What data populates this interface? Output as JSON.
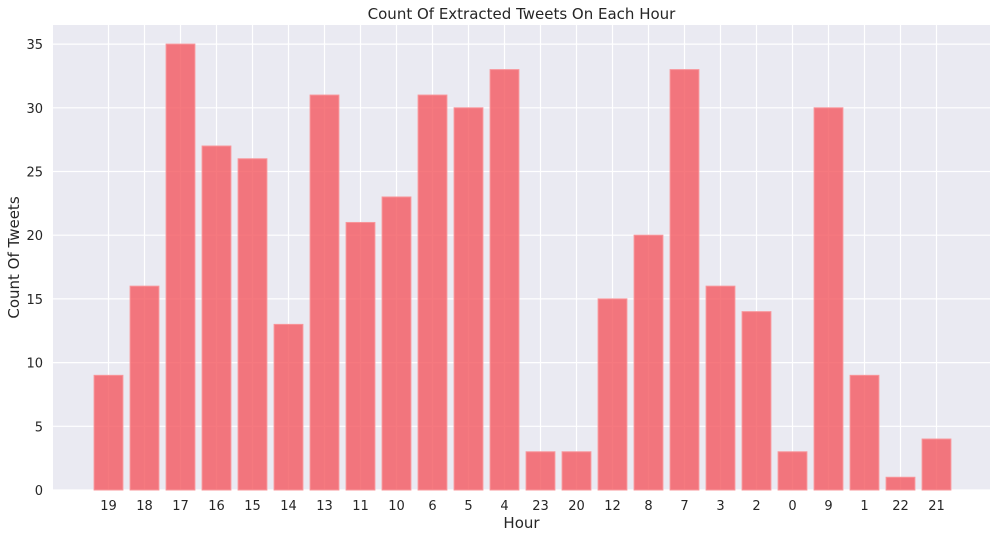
{
  "chart_data": {
    "type": "bar",
    "title": "Count Of Extracted Tweets On Each Hour",
    "xlabel": "Hour",
    "ylabel": "Count Of Tweets",
    "categories": [
      "19",
      "18",
      "17",
      "16",
      "15",
      "14",
      "13",
      "11",
      "10",
      "6",
      "5",
      "4",
      "23",
      "20",
      "12",
      "8",
      "7",
      "3",
      "2",
      "0",
      "9",
      "1",
      "22",
      "21"
    ],
    "values": [
      9,
      16,
      35,
      27,
      26,
      13,
      31,
      21,
      23,
      31,
      30,
      33,
      3,
      3,
      15,
      20,
      33,
      16,
      14,
      3,
      30,
      9,
      1,
      4
    ],
    "ylim": [
      0,
      36.5
    ],
    "yticks": [
      0,
      5,
      10,
      15,
      20,
      25,
      30,
      35
    ],
    "grid": true,
    "colors": {
      "bar": "#f4585f",
      "background": "#eaeaf2",
      "grid": "#ffffff"
    }
  }
}
